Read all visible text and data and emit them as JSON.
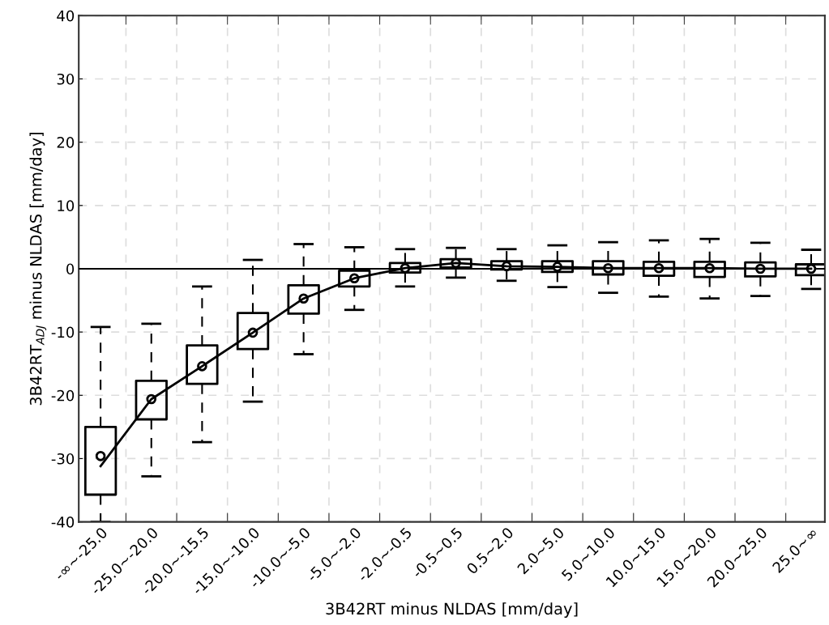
{
  "chart_data": {
    "type": "box",
    "xlabel": "3B42RT minus NLDAS [mm/day]",
    "ylabel": "3B42RT$_{ADJ}$ minus NLDAS [mm/day]",
    "categories": [
      "-∞~-25.0",
      "-25.0~-20.0",
      "-20.0~-15.5",
      "-15.0~-10.0",
      "-10.0~-5.0",
      "-5.0~-2.0",
      "-2.0~-0.5",
      "-0.5~0.5",
      "0.5~2.0",
      "2.0~5.0",
      "5.0~10.0",
      "10.0~15.0",
      "15.0~20.0",
      "20.0~25.0",
      "25.0~∞"
    ],
    "boxes": [
      {
        "low": -40,
        "q1": -35.7,
        "median": -29.6,
        "q3": -25.0,
        "high": -9.2
      },
      {
        "low": -32.8,
        "q1": -23.8,
        "median": -20.6,
        "q3": -17.7,
        "high": -8.7
      },
      {
        "low": -27.4,
        "q1": -18.2,
        "median": -15.4,
        "q3": -12.1,
        "high": -2.8
      },
      {
        "low": -21.0,
        "q1": -12.7,
        "median": -10.1,
        "q3": -7.0,
        "high": 1.4
      },
      {
        "low": -13.5,
        "q1": -7.1,
        "median": -4.7,
        "q3": -2.6,
        "high": 3.9
      },
      {
        "low": -6.5,
        "q1": -2.8,
        "median": -1.5,
        "q3": -0.3,
        "high": 3.4
      },
      {
        "low": -2.8,
        "q1": -0.6,
        "median": 0.1,
        "q3": 0.9,
        "high": 3.1
      },
      {
        "low": -1.4,
        "q1": 0.2,
        "median": 0.9,
        "q3": 1.5,
        "high": 3.3
      },
      {
        "low": -1.9,
        "q1": -0.1,
        "median": 0.4,
        "q3": 1.2,
        "high": 3.1
      },
      {
        "low": -2.9,
        "q1": -0.5,
        "median": 0.3,
        "q3": 1.2,
        "high": 3.7
      },
      {
        "low": -3.8,
        "q1": -0.9,
        "median": 0.1,
        "q3": 1.2,
        "high": 4.2
      },
      {
        "low": -4.4,
        "q1": -1.1,
        "median": 0.1,
        "q3": 1.1,
        "high": 4.5
      },
      {
        "low": -4.7,
        "q1": -1.3,
        "median": 0.1,
        "q3": 1.1,
        "high": 4.7
      },
      {
        "low": -4.3,
        "q1": -1.2,
        "median": 0.0,
        "q3": 1.0,
        "high": 4.1
      },
      {
        "low": -3.2,
        "q1": -1.0,
        "median": 0.0,
        "q3": 0.7,
        "high": 3.0
      }
    ],
    "series": [
      {
        "type": "line",
        "color": "#000000",
        "line_style": "solid",
        "values": [
          -31.2,
          -20.6,
          -15.4,
          -10.1,
          -4.7,
          -1.5,
          0.1,
          0.9,
          0.4,
          0.3,
          0.1,
          0.1,
          0.1,
          0.0,
          0.0
        ]
      }
    ],
    "ref_lines": [
      {
        "axis": "y",
        "value": 0,
        "color": "#000000",
        "line_style": "solid"
      }
    ],
    "ylim": [
      -40,
      40
    ],
    "yticks": [
      -40,
      -30,
      -20,
      -10,
      0,
      10,
      20,
      30,
      40
    ],
    "grid": true,
    "legend": false
  }
}
